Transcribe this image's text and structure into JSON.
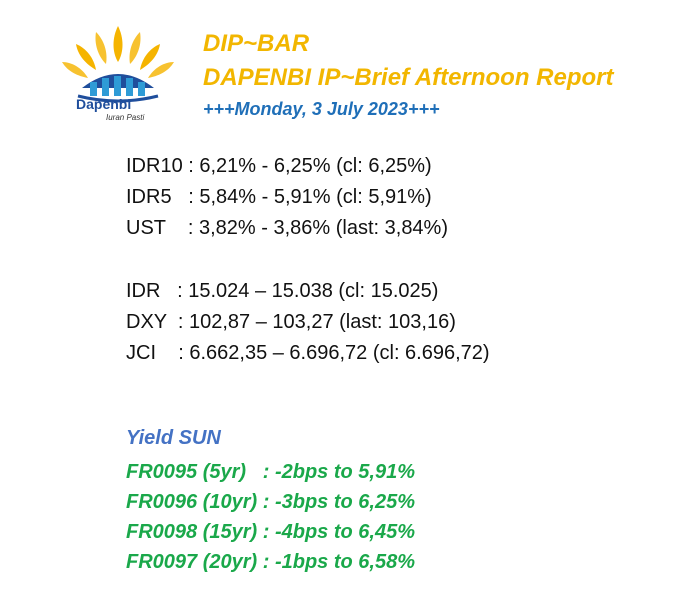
{
  "header": {
    "logo_name": "Dapenbi",
    "logo_tagline": "Iuran Pasti",
    "title": "DIP~BAR",
    "subtitle": "DAPENBI IP~Brief Afternoon Report",
    "date": "+++Monday, 3 July 2023+++"
  },
  "colors": {
    "title": "#f2b600",
    "date": "#1f6fb8",
    "sun_title": "#4472c4",
    "sun_rows": "#1aa84a",
    "logo_blue": "#1f4e9c"
  },
  "rates": [
    {
      "label": "IDR10 ",
      "value": ": 6,21% - 6,25% (cl: 6,25%)"
    },
    {
      "label": "IDR5   ",
      "value": ": 5,84% - 5,91% (cl: 5,91%)"
    },
    {
      "label": "UST    ",
      "value": ": 3,82% - 3,86% (last: 3,84%)"
    }
  ],
  "markets": [
    {
      "label": "IDR   ",
      "value": ": 15.024 – 15.038 (cl: 15.025)"
    },
    {
      "label": "DXY  ",
      "value": ": 102,87 – 103,27 (last: 103,16)"
    },
    {
      "label": "JCI    ",
      "value": ": 6.662,35 – 6.696,72 (cl: 6.696,72)"
    }
  ],
  "yield_sun": {
    "title": "Yield SUN",
    "rows": [
      "FR0095 (5yr)   : -2bps to 5,91%",
      "FR0096 (10yr) : -3bps to 6,25%",
      "FR0098 (15yr) : -4bps to 6,45%",
      "FR0097 (20yr) : -1bps to 6,58%"
    ]
  }
}
